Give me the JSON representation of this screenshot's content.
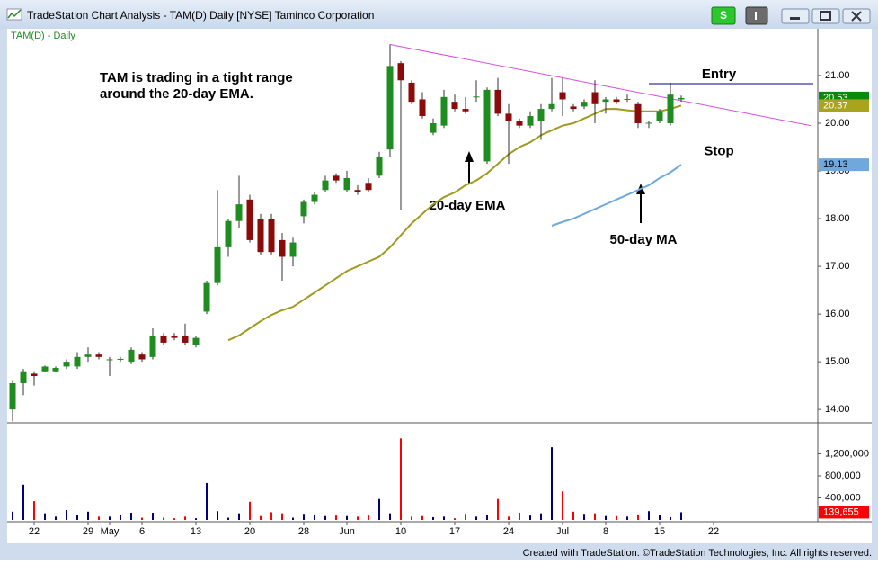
{
  "window": {
    "title": "TradeStation Chart Analysis - TAM(D) Daily [NYSE] Taminco Corporation",
    "strategy_button": "S",
    "footer": "Created with TradeStation. ©TradeStation Technologies, Inc. All rights reserved."
  },
  "chart_data": [
    {
      "type": "candlestick",
      "label": "TAM(D) - Daily",
      "categories": [
        null,
        null,
        "22",
        null,
        null,
        null,
        null,
        "29",
        null,
        "May",
        null,
        null,
        "6",
        null,
        null,
        null,
        null,
        "13",
        null,
        null,
        null,
        null,
        "20",
        null,
        null,
        null,
        null,
        "28",
        null,
        null,
        null,
        "Jun",
        null,
        null,
        null,
        null,
        "10",
        null,
        null,
        null,
        null,
        "17",
        null,
        null,
        null,
        null,
        "24",
        null,
        null,
        null,
        null,
        "Jul",
        null,
        null,
        null,
        "8",
        null,
        null,
        null,
        null,
        "15",
        null,
        null,
        null,
        null,
        "22",
        null,
        null,
        null,
        null,
        null,
        null,
        null,
        null,
        null
      ],
      "open": [
        14.0,
        14.55,
        14.75,
        14.8,
        14.8,
        14.9,
        14.9,
        15.1,
        15.15,
        15.05,
        15.05,
        15.0,
        15.15,
        15.1,
        15.55,
        15.55,
        15.55,
        15.35,
        16.05,
        16.65,
        17.4,
        17.95,
        18.4,
        18.0,
        18.0,
        17.55,
        17.2,
        18.05,
        18.35,
        18.6,
        18.9,
        18.6,
        18.6,
        18.75,
        18.9,
        19.45,
        21.26,
        20.85,
        20.5,
        19.8,
        19.95,
        20.45,
        20.3,
        20.55,
        19.2,
        20.7,
        20.2,
        20.05,
        19.95,
        20.05,
        20.3,
        20.65,
        20.35,
        20.35,
        20.65,
        20.45,
        20.5,
        20.5,
        20.4,
        20.0,
        20.05,
        20.0,
        20.5,
        null,
        null,
        null,
        null,
        null,
        null,
        null,
        null,
        null,
        null,
        null,
        null
      ],
      "high": [
        14.6,
        14.85,
        14.8,
        14.92,
        14.9,
        15.05,
        15.2,
        15.3,
        15.2,
        15.1,
        15.1,
        15.3,
        15.2,
        15.7,
        15.6,
        15.6,
        15.8,
        15.55,
        16.7,
        18.6,
        18.0,
        18.9,
        18.5,
        18.1,
        18.1,
        17.7,
        17.6,
        18.4,
        18.55,
        18.9,
        18.95,
        19.0,
        18.7,
        18.85,
        19.4,
        21.65,
        21.3,
        20.9,
        20.65,
        20.1,
        20.7,
        20.6,
        20.55,
        20.9,
        20.75,
        20.95,
        20.4,
        20.1,
        20.25,
        20.4,
        20.95,
        20.95,
        20.4,
        20.5,
        20.9,
        20.55,
        20.55,
        20.6,
        20.45,
        20.05,
        20.3,
        20.85,
        20.58,
        null,
        null,
        null,
        null,
        null,
        null,
        null,
        null,
        null,
        null,
        null,
        null
      ],
      "low": [
        13.75,
        14.3,
        14.5,
        14.78,
        14.78,
        14.85,
        14.85,
        15.0,
        15.05,
        14.7,
        15.0,
        14.95,
        15.0,
        15.05,
        15.35,
        15.45,
        15.35,
        15.3,
        16.0,
        16.6,
        17.2,
        17.8,
        17.5,
        17.25,
        17.25,
        16.7,
        17.0,
        17.9,
        18.3,
        18.55,
        18.75,
        18.55,
        18.5,
        18.55,
        18.85,
        19.3,
        18.19,
        20.4,
        20.1,
        19.75,
        19.9,
        20.25,
        20.2,
        20.45,
        19.15,
        20.15,
        19.15,
        19.9,
        19.9,
        19.65,
        20.25,
        20.15,
        20.25,
        20.3,
        20.0,
        20.2,
        20.4,
        20.45,
        19.9,
        19.9,
        20.0,
        19.95,
        20.45,
        null,
        null,
        null,
        null,
        null,
        null,
        null,
        null,
        null,
        null,
        null,
        null
      ],
      "close": [
        14.55,
        14.8,
        14.7,
        14.9,
        14.87,
        15.0,
        15.1,
        15.15,
        15.1,
        15.05,
        15.06,
        15.25,
        15.05,
        15.55,
        15.4,
        15.5,
        15.4,
        15.5,
        16.65,
        17.4,
        17.95,
        18.3,
        17.55,
        17.3,
        17.3,
        17.2,
        17.5,
        18.35,
        18.5,
        18.8,
        18.8,
        18.85,
        18.55,
        18.6,
        19.3,
        21.2,
        20.9,
        20.45,
        20.15,
        20.0,
        20.55,
        20.3,
        20.25,
        20.56,
        20.7,
        20.2,
        20.05,
        19.95,
        20.15,
        20.3,
        20.4,
        20.5,
        20.3,
        20.45,
        20.4,
        20.5,
        20.45,
        20.51,
        20.0,
        20.01,
        20.25,
        20.6,
        20.53,
        null,
        null,
        null,
        null,
        null,
        null,
        null,
        null,
        null,
        null,
        null,
        null
      ],
      "up_color": "#1e8c1e",
      "down_color": "#8b0a0a",
      "series": [
        {
          "name": "20-day EMA",
          "color": "#a09a1e",
          "values": [
            null,
            null,
            null,
            null,
            null,
            null,
            null,
            null,
            null,
            null,
            null,
            null,
            null,
            null,
            null,
            null,
            null,
            null,
            null,
            null,
            15.45,
            15.55,
            15.7,
            15.85,
            15.98,
            16.08,
            16.15,
            16.3,
            16.45,
            16.6,
            16.75,
            16.9,
            17.0,
            17.1,
            17.2,
            17.4,
            17.65,
            17.9,
            18.1,
            18.3,
            18.45,
            18.55,
            18.7,
            18.8,
            18.95,
            19.15,
            19.35,
            19.5,
            19.6,
            19.75,
            19.85,
            19.95,
            20.0,
            20.1,
            20.2,
            20.3,
            20.3,
            20.27,
            20.25,
            20.25,
            20.25,
            20.3,
            20.37,
            null,
            null,
            null,
            null,
            null,
            null,
            null,
            null,
            null,
            null,
            null,
            null
          ]
        },
        {
          "name": "50-day MA",
          "color": "#6fa8dc",
          "values": [
            null,
            null,
            null,
            null,
            null,
            null,
            null,
            null,
            null,
            null,
            null,
            null,
            null,
            null,
            null,
            null,
            null,
            null,
            null,
            null,
            null,
            null,
            null,
            null,
            null,
            null,
            null,
            null,
            null,
            null,
            null,
            null,
            null,
            null,
            null,
            null,
            null,
            null,
            null,
            null,
            null,
            null,
            null,
            null,
            null,
            null,
            null,
            null,
            null,
            null,
            17.85,
            17.93,
            18.0,
            18.1,
            18.2,
            18.3,
            18.4,
            18.5,
            18.6,
            18.7,
            18.85,
            18.97,
            19.13,
            null,
            null,
            null,
            null,
            null,
            null,
            null,
            null,
            null,
            null,
            null,
            null
          ]
        }
      ],
      "trendline": {
        "x": [
          35,
          74
        ],
        "y": [
          21.65,
          19.95
        ],
        "color": "#d84fd8"
      },
      "levels": [
        {
          "name": "Entry",
          "value": 20.83,
          "color": "#00008b"
        },
        {
          "name": "Stop",
          "value": 19.67,
          "color": "#d02020"
        }
      ],
      "markers": [
        {
          "value": 20.53,
          "label": "20.53",
          "color": "#0a8a0a"
        },
        {
          "value": 20.37,
          "label": "20.37",
          "color": "#a8a41e"
        },
        {
          "value": 19.13,
          "label": "19.13",
          "color": "#6fa8dc"
        }
      ],
      "annotations": [
        "TAM is trading in a tight range",
        "around the 20-day EMA."
      ],
      "ylim": [
        13.72,
        21.98
      ],
      "yticks": [
        {
          "value": 14,
          "label": "14.00"
        },
        {
          "value": 15,
          "label": "15.00"
        },
        {
          "value": 16,
          "label": "16.00"
        },
        {
          "value": 17,
          "label": "17.00"
        },
        {
          "value": 18,
          "label": "18.00"
        },
        {
          "value": 19,
          "label": "19.00"
        },
        {
          "value": 20,
          "label": "20.00"
        },
        {
          "value": 21,
          "label": "21.00"
        }
      ]
    },
    {
      "type": "bar",
      "up_color": "#00007f",
      "down_color": "#ff0000",
      "values": [
        150000,
        640000,
        340000,
        120000,
        60000,
        180000,
        90000,
        150000,
        60000,
        60000,
        90000,
        130000,
        40000,
        130000,
        40000,
        30000,
        60000,
        30000,
        670000,
        160000,
        40000,
        120000,
        330000,
        70000,
        140000,
        120000,
        40000,
        110000,
        100000,
        70000,
        80000,
        70000,
        60000,
        80000,
        380000,
        120000,
        1480000,
        60000,
        70000,
        50000,
        60000,
        30000,
        110000,
        60000,
        90000,
        380000,
        60000,
        130000,
        80000,
        120000,
        1320000,
        520000,
        150000,
        110000,
        120000,
        70000,
        70000,
        60000,
        100000,
        160000,
        90000,
        50000,
        139655,
        null,
        null,
        null,
        null,
        null,
        null,
        null,
        null,
        null,
        null,
        null,
        null
      ],
      "marker": {
        "value": 139655,
        "label": "139,655",
        "color": "#ff0000"
      },
      "ylim": [
        0,
        1730000
      ],
      "yticks": [
        {
          "value": 400000,
          "label": "400,000"
        },
        {
          "value": 800000,
          "label": "800,000"
        },
        {
          "value": 1200000,
          "label": "1,200,000"
        }
      ]
    }
  ]
}
